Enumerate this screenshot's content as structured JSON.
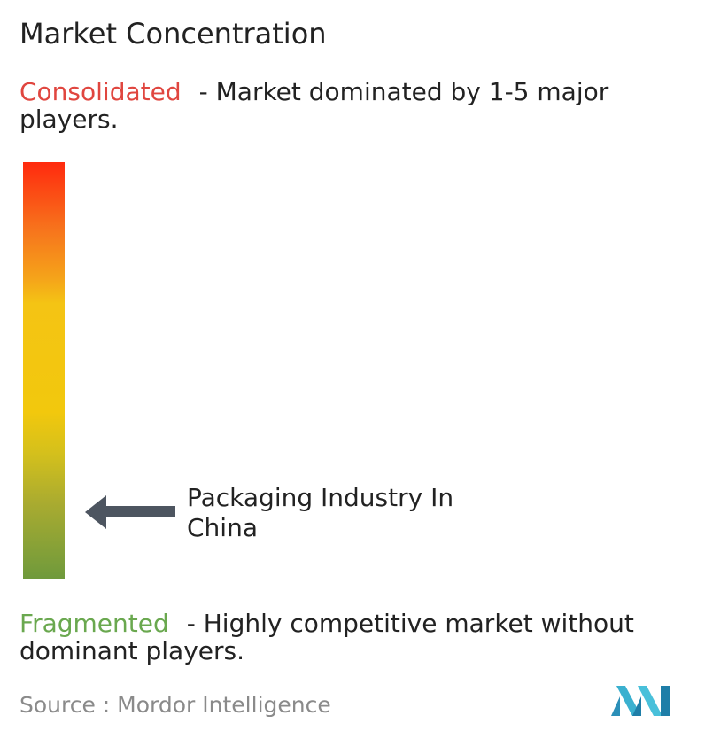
{
  "title": "Market Concentration",
  "consolidated": {
    "term": "Consolidated",
    "description": "- Market dominated by 1-5 major players.",
    "color": "#e0463f"
  },
  "fragmented": {
    "term": "Fragmented",
    "description": "- Highly competitive market without dominant players.",
    "color": "#6aa84f"
  },
  "source": "Source :  Mordor Intelligence",
  "logo_icon": "mordor-intelligence-logo",
  "chart_data": {
    "type": "gauge",
    "scale_top": "Consolidated",
    "scale_bottom": "Fragmented",
    "marker_label": "Packaging Industry In China",
    "marker_position": 0.16,
    "gradient_colors": [
      "#ff2a0e",
      "#f7731c",
      "#f4c414",
      "#f2c80d",
      "#a9ab30",
      "#6f9a3c"
    ]
  }
}
